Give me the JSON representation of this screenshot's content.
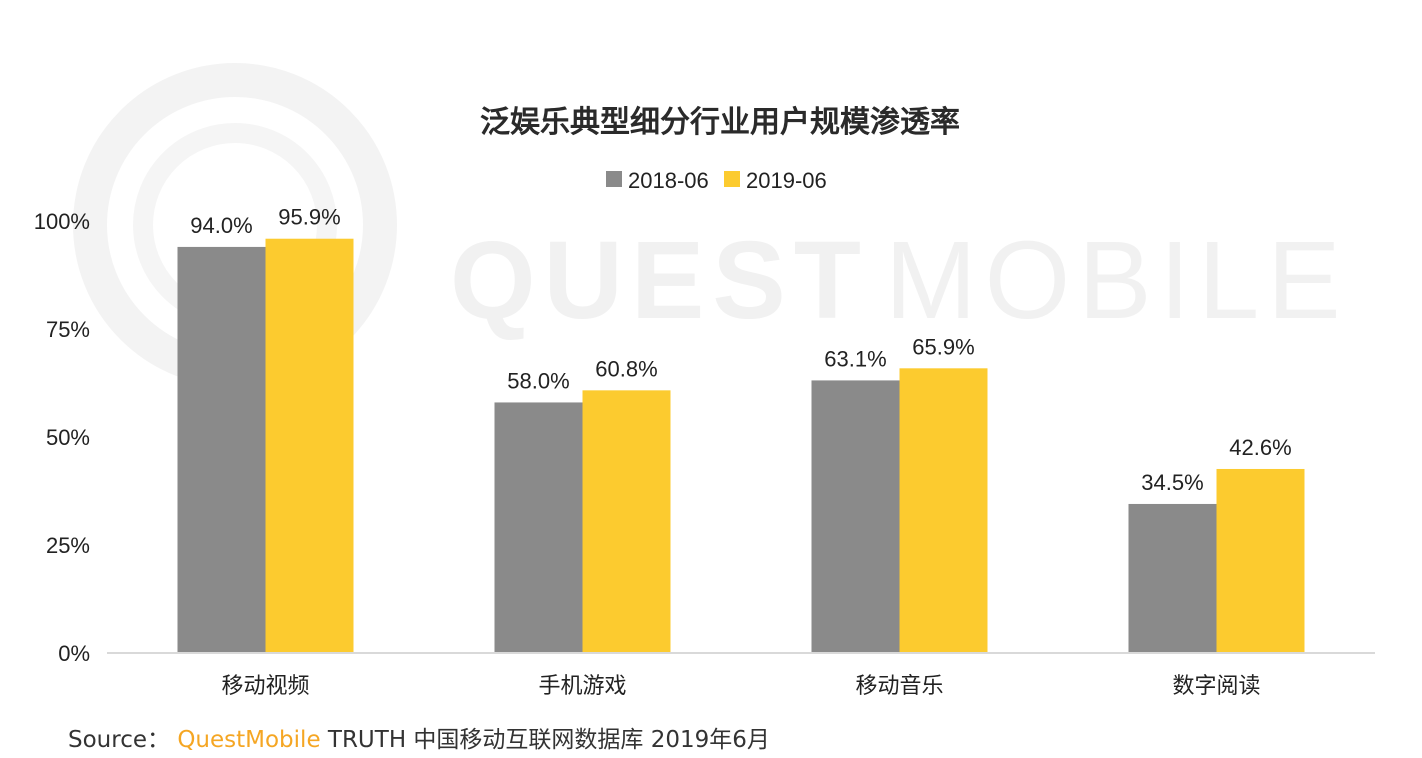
{
  "watermark": {
    "text_light": "QUEST",
    "text_thin": "MOBILE"
  },
  "chart_data": {
    "type": "bar",
    "title": "泛娱乐典型细分行业用户规模渗透率",
    "categories": [
      "移动视频",
      "手机游戏",
      "移动音乐",
      "数字阅读"
    ],
    "series": [
      {
        "name": "2018-06",
        "color": "#8a8a8a",
        "values": [
          94.0,
          58.0,
          63.1,
          34.5
        ],
        "labels": [
          "94.0%",
          "58.0%",
          "63.1%",
          "34.5%"
        ]
      },
      {
        "name": "2019-06",
        "color": "#fccb2f",
        "values": [
          95.9,
          60.8,
          65.9,
          42.6
        ],
        "labels": [
          "95.9%",
          "60.8%",
          "65.9%",
          "42.6%"
        ]
      }
    ],
    "yticks": [
      0,
      25,
      50,
      75,
      100
    ],
    "ytick_labels": [
      "0%",
      "25%",
      "50%",
      "75%",
      "100%"
    ],
    "ylim": [
      0,
      100
    ],
    "legend": "top-center",
    "grid": false
  },
  "source": {
    "prefix": "Source：",
    "brand": "QuestMobile",
    "rest": " TRUTH 中国移动互联网数据库 2019年6月"
  }
}
